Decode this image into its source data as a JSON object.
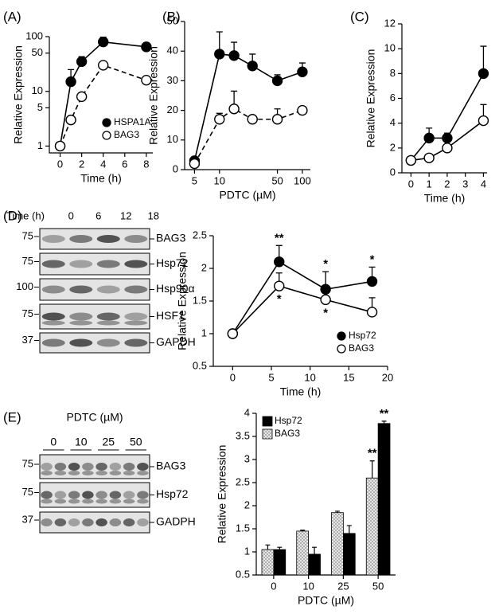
{
  "chart_data": [
    {
      "type": "line",
      "panel": "(A)",
      "xlabel": "Time (h)",
      "ylabel": "Relative Expression",
      "x": [
        0,
        1,
        2,
        4,
        8
      ],
      "xlim": [
        -1,
        8.6
      ],
      "xticks": [
        0,
        2,
        4,
        6,
        8
      ],
      "ylim": [
        0.75,
        100
      ],
      "yticks": [
        1,
        5,
        10,
        50,
        100
      ],
      "yscale": "log",
      "legend": "lower right",
      "series": [
        {
          "name": "HSPA1A",
          "color": "#000000",
          "fill": "#000000",
          "line": "solid",
          "values": [
            1,
            15,
            35,
            80,
            65
          ],
          "errors": [
            0,
            10,
            8,
            18,
            0
          ]
        },
        {
          "name": "BAG3",
          "color": "#000000",
          "fill": "#ffffff",
          "line": "dashed",
          "values": [
            1,
            3,
            8,
            30,
            16
          ],
          "errors": [
            0,
            0,
            1,
            0,
            0
          ]
        }
      ]
    },
    {
      "type": "line",
      "panel": "(B)",
      "xlabel": "PDTC (µM)",
      "ylabel": "Relative Expression",
      "x": [
        5,
        10,
        15,
        25,
        50,
        100
      ],
      "xlim": [
        3.8,
        125
      ],
      "xscale": "log",
      "xticks": [
        5,
        10,
        50,
        100
      ],
      "ylim": [
        0,
        50
      ],
      "yticks": [
        0,
        10,
        20,
        30,
        40,
        50
      ],
      "series": [
        {
          "color": "#000000",
          "fill": "#000000",
          "line": "solid",
          "values": [
            3,
            39,
            38.5,
            35,
            30,
            33
          ],
          "errors": [
            0,
            7.5,
            4.5,
            4,
            2,
            3
          ]
        },
        {
          "color": "#000000",
          "fill": "#ffffff",
          "line": "dashed",
          "values": [
            2,
            17,
            20.5,
            17,
            17,
            20
          ],
          "errors": [
            0,
            2,
            6,
            0,
            3.5,
            1
          ]
        }
      ]
    },
    {
      "type": "line",
      "panel": "(C)",
      "xlabel": "Time (h)",
      "ylabel": "Relative Expression",
      "x": [
        0,
        1,
        2,
        4
      ],
      "xlim": [
        -0.5,
        4.2
      ],
      "xticks": [
        0,
        1,
        2,
        3,
        4
      ],
      "ylim": [
        0,
        12
      ],
      "yticks": [
        0,
        2,
        4,
        6,
        8,
        10,
        12
      ],
      "series": [
        {
          "color": "#000000",
          "fill": "#000000",
          "line": "solid",
          "values": [
            1,
            2.8,
            2.8,
            8
          ],
          "errors": [
            0,
            0.8,
            0.4,
            2.2
          ]
        },
        {
          "color": "#000000",
          "fill": "#ffffff",
          "line": "solid",
          "values": [
            1,
            1.2,
            2,
            4.2
          ],
          "errors": [
            0,
            0,
            0.2,
            1.3
          ]
        }
      ]
    },
    {
      "type": "line",
      "panel": "(D)",
      "xlabel": "Time (h)",
      "ylabel": "Relative Expression",
      "x": [
        0,
        6,
        12,
        18
      ],
      "xlim": [
        -2.5,
        20
      ],
      "xticks": [
        0,
        5,
        10,
        15,
        20
      ],
      "ylim": [
        0.5,
        2.5
      ],
      "yticks": [
        0.5,
        1,
        1.5,
        2,
        2.5
      ],
      "legend": "lower right",
      "series": [
        {
          "name": "Hsp72",
          "color": "#000000",
          "fill": "#000000",
          "line": "solid",
          "values": [
            1,
            2.1,
            1.68,
            1.8
          ],
          "errors": [
            0,
            0.25,
            0.27,
            0.22
          ],
          "significance": [
            null,
            "**",
            "*",
            "*"
          ],
          "significance_side": "above"
        },
        {
          "name": "BAG3",
          "color": "#000000",
          "fill": "#ffffff",
          "line": "solid",
          "values": [
            1,
            1.73,
            1.52,
            1.33
          ],
          "errors": [
            0,
            0.2,
            0.12,
            0.22
          ],
          "significance": [
            null,
            "*",
            "*",
            null
          ],
          "significance_side": "below"
        }
      ]
    },
    {
      "type": "bar",
      "panel": "(E)",
      "xlabel": "PDTC (µM)",
      "ylabel": "Relative Expression",
      "categories": [
        0,
        10,
        25,
        50
      ],
      "ylim": [
        0.5,
        4
      ],
      "yticks": [
        0.5,
        1,
        1.5,
        2,
        2.5,
        3,
        3.5,
        4
      ],
      "legend": "upper left",
      "series": [
        {
          "name": "Hsp72",
          "color": "#000000",
          "pattern": "solid",
          "values": [
            1.05,
            0.95,
            1.4,
            3.78
          ],
          "errors": [
            0.05,
            0.15,
            0.17,
            0.05
          ],
          "significance": [
            null,
            null,
            null,
            "**"
          ],
          "significance_side": "above"
        },
        {
          "name": "BAG3",
          "color": "#888888",
          "pattern": "crosshatch",
          "values": [
            1.05,
            1.45,
            1.85,
            2.6
          ],
          "errors": [
            0.1,
            0.02,
            0.03,
            0.37
          ],
          "significance": [
            null,
            null,
            null,
            "**"
          ],
          "significance_side": "above"
        }
      ]
    }
  ],
  "blots": [
    {
      "header": "Time (h)",
      "lanes": [
        0,
        6,
        12,
        18
      ],
      "rows": [
        {
          "marker": 75,
          "label": "BAG3"
        },
        {
          "marker": 75,
          "label": "Hsp72"
        },
        {
          "marker": 100,
          "label": "Hsp90α"
        },
        {
          "marker": 75,
          "label": "HSF1"
        },
        {
          "marker": 37,
          "label": "GAPDH"
        }
      ]
    },
    {
      "header": "PDTC (µM)",
      "lanes": [
        0,
        10,
        25,
        50
      ],
      "rows": [
        {
          "marker": 75,
          "label": "BAG3"
        },
        {
          "marker": 75,
          "label": "Hsp72"
        },
        {
          "marker": 37,
          "label": "GADPH"
        }
      ]
    }
  ]
}
